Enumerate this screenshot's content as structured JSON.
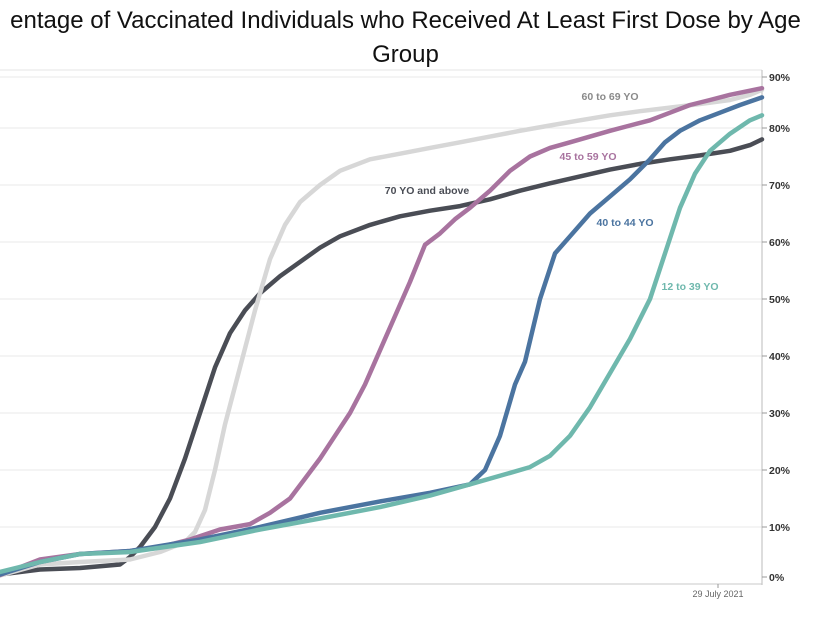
{
  "chart_data": {
    "type": "line",
    "title_line1": "entage of Vaccinated Individuals who Received At Least First Dose by Age",
    "title_line2": "Group",
    "y_ticks": [
      "0%",
      "10%",
      "20%",
      "30%",
      "40%",
      "50%",
      "60%",
      "70%",
      "80%",
      "90%"
    ],
    "ylim": [
      0,
      90
    ],
    "x_annotation": "29 July 2021",
    "grid": true,
    "series": [
      {
        "name": "70 YO and above",
        "color": "#4a4d55",
        "points": [
          [
            0,
            0.5
          ],
          [
            40,
            1.5
          ],
          [
            80,
            1.8
          ],
          [
            120,
            2.5
          ],
          [
            130,
            4
          ],
          [
            140,
            6
          ],
          [
            155,
            10
          ],
          [
            170,
            15
          ],
          [
            185,
            22
          ],
          [
            200,
            30
          ],
          [
            215,
            38
          ],
          [
            230,
            44
          ],
          [
            245,
            48
          ],
          [
            260,
            51
          ],
          [
            280,
            54
          ],
          [
            300,
            56.5
          ],
          [
            320,
            59
          ],
          [
            340,
            61
          ],
          [
            370,
            63
          ],
          [
            400,
            64.5
          ],
          [
            430,
            65.5
          ],
          [
            460,
            66.3
          ],
          [
            490,
            67.5
          ],
          [
            520,
            69
          ],
          [
            550,
            70.3
          ],
          [
            580,
            71.5
          ],
          [
            610,
            72.7
          ],
          [
            640,
            73.7
          ],
          [
            670,
            74.5
          ],
          [
            700,
            75.2
          ],
          [
            730,
            76
          ],
          [
            750,
            77
          ],
          [
            762,
            78
          ]
        ]
      },
      {
        "name": "60 to 69 YO",
        "color": "#d7d7d7",
        "points": [
          [
            0,
            0.3
          ],
          [
            40,
            2.5
          ],
          [
            80,
            3
          ],
          [
            130,
            3.5
          ],
          [
            160,
            5
          ],
          [
            185,
            7
          ],
          [
            195,
            9
          ],
          [
            205,
            13
          ],
          [
            215,
            20
          ],
          [
            225,
            28
          ],
          [
            240,
            38
          ],
          [
            255,
            48
          ],
          [
            270,
            57
          ],
          [
            285,
            63
          ],
          [
            300,
            67
          ],
          [
            320,
            70
          ],
          [
            340,
            72.5
          ],
          [
            370,
            74.5
          ],
          [
            400,
            75.5
          ],
          [
            430,
            76.5
          ],
          [
            460,
            77.5
          ],
          [
            490,
            78.5
          ],
          [
            520,
            79.5
          ],
          [
            550,
            80.5
          ],
          [
            580,
            81.5
          ],
          [
            610,
            82.5
          ],
          [
            640,
            83.3
          ],
          [
            670,
            84
          ],
          [
            700,
            84.7
          ],
          [
            730,
            85.5
          ],
          [
            750,
            86.5
          ],
          [
            762,
            87.5
          ]
        ]
      },
      {
        "name": "45 to 59 YO",
        "color": "#a8739f",
        "points": [
          [
            0,
            0.4
          ],
          [
            40,
            3.5
          ],
          [
            80,
            4.6
          ],
          [
            130,
            5.2
          ],
          [
            160,
            6
          ],
          [
            190,
            7.5
          ],
          [
            220,
            9.5
          ],
          [
            250,
            10.5
          ],
          [
            270,
            12.5
          ],
          [
            290,
            15
          ],
          [
            305,
            18.5
          ],
          [
            320,
            22
          ],
          [
            335,
            26
          ],
          [
            350,
            30
          ],
          [
            365,
            35
          ],
          [
            380,
            41
          ],
          [
            395,
            47
          ],
          [
            410,
            53
          ],
          [
            425,
            59.5
          ],
          [
            440,
            61.5
          ],
          [
            455,
            64
          ],
          [
            470,
            66
          ],
          [
            490,
            69
          ],
          [
            510,
            72.5
          ],
          [
            530,
            75
          ],
          [
            550,
            76.5
          ],
          [
            570,
            77.5
          ],
          [
            590,
            78.5
          ],
          [
            610,
            79.5
          ],
          [
            630,
            80.5
          ],
          [
            650,
            81.5
          ],
          [
            670,
            83
          ],
          [
            690,
            84.5
          ],
          [
            710,
            85.5
          ],
          [
            730,
            86.5
          ],
          [
            762,
            87.8
          ]
        ]
      },
      {
        "name": "40 to 44 YO",
        "color": "#4b74a0",
        "points": [
          [
            0,
            0.5
          ],
          [
            40,
            3
          ],
          [
            80,
            4.6
          ],
          [
            130,
            5.2
          ],
          [
            200,
            7.5
          ],
          [
            260,
            10
          ],
          [
            320,
            12.5
          ],
          [
            380,
            14.5
          ],
          [
            430,
            16
          ],
          [
            470,
            17.5
          ],
          [
            485,
            20
          ],
          [
            500,
            26
          ],
          [
            515,
            35
          ],
          [
            525,
            39
          ],
          [
            540,
            50
          ],
          [
            555,
            58
          ],
          [
            570,
            61
          ],
          [
            590,
            65
          ],
          [
            610,
            68
          ],
          [
            630,
            71
          ],
          [
            650,
            74.5
          ],
          [
            665,
            77.5
          ],
          [
            680,
            79.5
          ],
          [
            700,
            81.5
          ],
          [
            720,
            83
          ],
          [
            740,
            84.5
          ],
          [
            762,
            86
          ]
        ]
      },
      {
        "name": "12 to 39 YO",
        "color": "#6fb8ad",
        "points": [
          [
            0,
            1
          ],
          [
            40,
            3
          ],
          [
            80,
            4.6
          ],
          [
            130,
            5
          ],
          [
            200,
            7
          ],
          [
            260,
            9.5
          ],
          [
            320,
            11.5
          ],
          [
            380,
            13.5
          ],
          [
            430,
            15.5
          ],
          [
            470,
            17.5
          ],
          [
            510,
            19.5
          ],
          [
            530,
            20.5
          ],
          [
            550,
            22.5
          ],
          [
            570,
            26
          ],
          [
            590,
            31
          ],
          [
            610,
            37
          ],
          [
            630,
            43
          ],
          [
            650,
            50
          ],
          [
            665,
            58
          ],
          [
            680,
            66
          ],
          [
            695,
            72
          ],
          [
            710,
            76
          ],
          [
            730,
            79
          ],
          [
            750,
            81.5
          ],
          [
            762,
            82.5
          ]
        ]
      }
    ],
    "labels": [
      {
        "text": "60 to 69 YO",
        "series": 1
      },
      {
        "text": "45 to 59 YO",
        "series": 2
      },
      {
        "text": "70 YO and above",
        "series": 0
      },
      {
        "text": "40 to 44 YO",
        "series": 3
      },
      {
        "text": "12 to 39 YO",
        "series": 4
      }
    ]
  }
}
